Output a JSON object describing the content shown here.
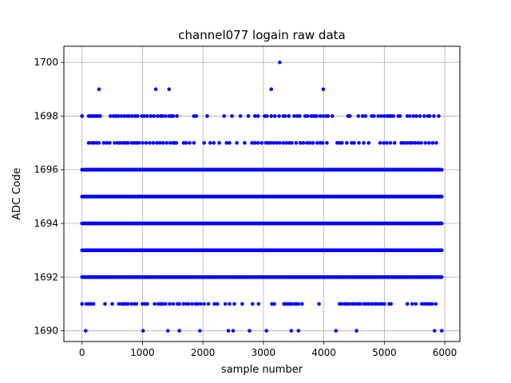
{
  "chart_data": {
    "type": "scatter",
    "title": "channel077 logain raw data",
    "xlabel": "sample number",
    "ylabel": "ADC Code",
    "xlim": [
      -300,
      6250
    ],
    "ylim": [
      1689.6,
      1700.6
    ],
    "xticks": [
      0,
      1000,
      2000,
      3000,
      4000,
      5000,
      6000
    ],
    "yticks": [
      1690,
      1692,
      1694,
      1696,
      1698,
      1700
    ],
    "xtick_labels": [
      "0",
      "1000",
      "2000",
      "3000",
      "4000",
      "5000",
      "6000"
    ],
    "ytick_labels": [
      "1690",
      "1692",
      "1694",
      "1696",
      "1698",
      "1700"
    ],
    "grid": true,
    "legend": "none",
    "marker_color": "#0000ff",
    "x_range": [
      0,
      5950
    ],
    "series": [
      {
        "values_by_code": [
          {
            "y": 1700,
            "x": [
              3270
            ]
          },
          {
            "y": 1699,
            "x": [
              280,
              1220,
              1440,
              3130,
              3990
            ]
          },
          {
            "y": 1698,
            "x": [
              0,
              110,
              150,
              180,
              210,
              240,
              270,
              300,
              470,
              520,
              560,
              600,
              650,
              700,
              750,
              780,
              830,
              880,
              920,
              990,
              1030,
              1080,
              1140,
              1190,
              1250,
              1300,
              1330,
              1380,
              1440,
              1480,
              1510,
              1570,
              1850,
              1890,
              2070,
              2350,
              2480,
              2620,
              2750,
              2860,
              2910,
              3020,
              3060,
              3130,
              3190,
              3260,
              3330,
              3360,
              3420,
              3510,
              3560,
              3600,
              3690,
              3730,
              3790,
              3830,
              3850,
              3880,
              3940,
              3990,
              4040,
              4070,
              4140,
              4400,
              4430,
              4570,
              4640,
              4690,
              4790,
              4830,
              4900,
              4950,
              5000,
              5050,
              5080,
              5110,
              5150,
              5230,
              5260,
              5380,
              5420,
              5480,
              5530,
              5590,
              5660,
              5720,
              5750,
              5820,
              5900
            ]
          },
          {
            "y": 1697,
            "x": [
              110,
              160,
              200,
              240,
              280,
              360,
              410,
              460,
              540,
              590,
              630,
              680,
              720,
              760,
              820,
              860,
              900,
              940,
              1000,
              1060,
              1120,
              1180,
              1240,
              1290,
              1340,
              1400,
              1460,
              1510,
              1530,
              1560,
              1680,
              1720,
              1780,
              1850,
              2020,
              2120,
              2180,
              2270,
              2390,
              2440,
              2560,
              2690,
              2810,
              2860,
              2910,
              2970,
              3040,
              3080,
              3120,
              3170,
              3220,
              3270,
              3330,
              3380,
              3430,
              3470,
              3540,
              3610,
              3660,
              3720,
              3770,
              3820,
              3890,
              3940,
              3980,
              4050,
              4220,
              4260,
              4300,
              4380,
              4460,
              4500,
              4580,
              4660,
              4740,
              4930,
              4990,
              5040,
              5100,
              5170,
              5280,
              5320,
              5370,
              5420,
              5460,
              5510,
              5560,
              5610,
              5680,
              5740,
              5800,
              5860
            ]
          },
          {
            "y": 1691,
            "x": [
              0,
              70,
              110,
              150,
              190,
              380,
              500,
              610,
              660,
              690,
              720,
              760,
              820,
              870,
              900,
              1000,
              1040,
              1080,
              1200,
              1260,
              1300,
              1330,
              1380,
              1450,
              1510,
              1580,
              1610,
              1680,
              1730,
              1760,
              1820,
              1880,
              1910,
              1960,
              2020,
              2090,
              2190,
              2240,
              2370,
              2440,
              2520,
              2650,
              2820,
              2920,
              3140,
              3180,
              3340,
              3370,
              3410,
              3440,
              3470,
              3520,
              3550,
              3580,
              3640,
              3920,
              4260,
              4290,
              4340,
              4380,
              4420,
              4470,
              4510,
              4560,
              4600,
              4660,
              4700,
              4740,
              4790,
              4840,
              4870,
              4920,
              4960,
              5000,
              5080,
              5110,
              5380,
              5460,
              5520,
              5620,
              5660,
              5710,
              5750,
              5790,
              5850
            ]
          },
          {
            "y": 1690,
            "x": [
              60,
              1010,
              1420,
              1610,
              1950,
              2420,
              2500,
              2770,
              3050,
              3460,
              3580,
              4200,
              4540,
              5830,
              5950
            ]
          }
        ],
        "dense_codes": [
          1692,
          1693,
          1694,
          1695,
          1696
        ]
      }
    ]
  }
}
